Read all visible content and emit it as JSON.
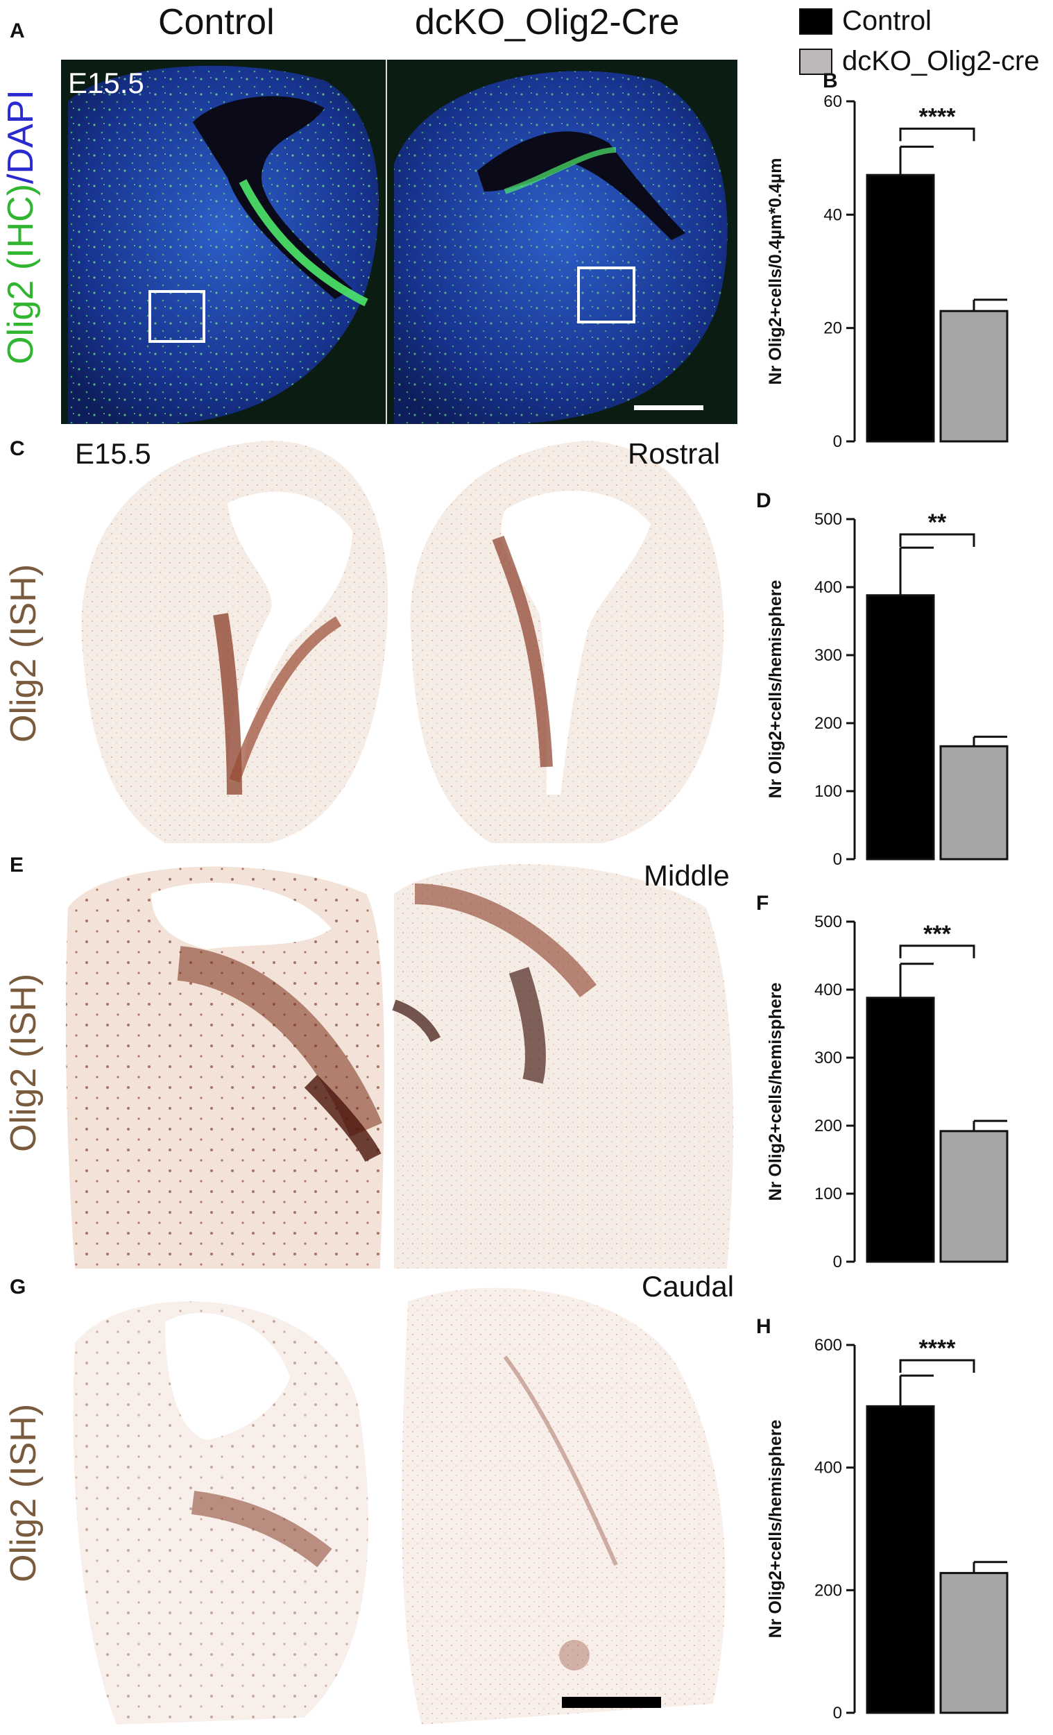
{
  "headers": {
    "control": "Control",
    "dcko": "dcKO_Olig2-Cre"
  },
  "panel_letters": {
    "A": "A",
    "B": "B",
    "C": "C",
    "D": "D",
    "E": "E",
    "F": "F",
    "G": "G",
    "H": "H"
  },
  "row_labels": {
    "a_part1": "Olig2 (IHC)",
    "a_sep": "/",
    "a_part2": "DAPI",
    "c": "Olig2 (ISH)",
    "e": "Olig2 (ISH)",
    "g": "Olig2 (ISH)"
  },
  "image_labels": {
    "a_stage": "E15.5",
    "c_stage": "E15.5",
    "rostral": "Rostral",
    "middle": "Middle",
    "caudal": "Caudal"
  },
  "legend": [
    {
      "label": "Control",
      "color": "#000000"
    },
    {
      "label": "dcKO_Olig2-cre",
      "color": "#bdb8b8"
    }
  ],
  "colors": {
    "ihc_green": "#2fb52f",
    "dapi_blue": "#2a2acf",
    "ish_brown": "#7a5a3c",
    "control_bar": "#000000",
    "dcko_bar": "#a6a6a6"
  },
  "chart_data": [
    {
      "panel": "B",
      "type": "bar",
      "categories": [
        "Control",
        "dcKO_Olig2-cre"
      ],
      "values": [
        47,
        23
      ],
      "errors": [
        5,
        2
      ],
      "ylabel": "Nr Olig2+cells/0.4µm*0.4µm",
      "ylim": [
        0,
        60
      ],
      "yticks": [
        0,
        20,
        40,
        60
      ],
      "significance": "****"
    },
    {
      "panel": "D",
      "type": "bar",
      "categories": [
        "Control",
        "dcKO_Olig2-cre"
      ],
      "values": [
        388,
        166
      ],
      "errors": [
        70,
        14
      ],
      "ylabel": "Nr Olig2+cells/hemisphere",
      "ylim": [
        0,
        500
      ],
      "yticks": [
        0,
        100,
        200,
        300,
        400,
        500
      ],
      "significance": "**"
    },
    {
      "panel": "F",
      "type": "bar",
      "categories": [
        "Control",
        "dcKO_Olig2-cre"
      ],
      "values": [
        388,
        192
      ],
      "errors": [
        50,
        15
      ],
      "ylabel": "Nr Olig2+cells/hemisphere",
      "ylim": [
        0,
        500
      ],
      "yticks": [
        0,
        100,
        200,
        300,
        400,
        500
      ],
      "significance": "***"
    },
    {
      "panel": "H",
      "type": "bar",
      "categories": [
        "Control",
        "dcKO_Olig2-cre"
      ],
      "values": [
        500,
        228
      ],
      "errors": [
        50,
        18
      ],
      "ylabel": "Nr Olig2+cells/hemisphere",
      "ylim": [
        0,
        600
      ],
      "yticks": [
        0,
        200,
        400,
        600
      ],
      "significance": "****"
    }
  ]
}
